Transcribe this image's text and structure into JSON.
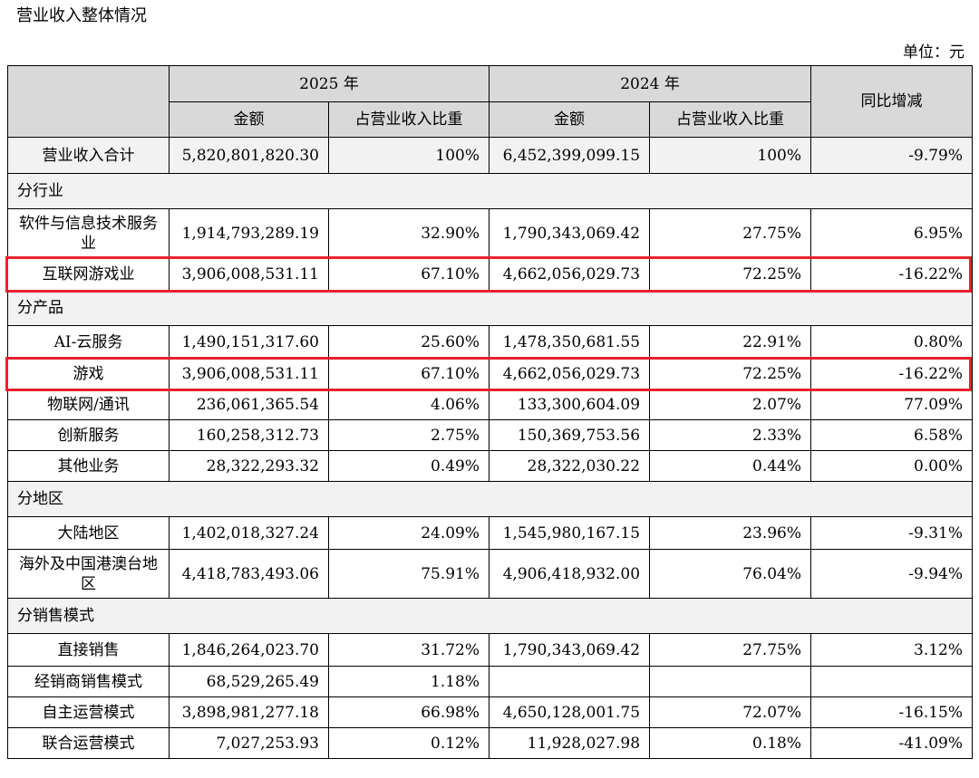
{
  "title": "营业收入整体情况",
  "unit": "单位：元",
  "header": {
    "year_2025": "2025 年",
    "year_2024": "2024 年",
    "yoy": "同比增减",
    "amount": "金额",
    "share": "占营业收入比重"
  },
  "total": {
    "label": "营业收入合计",
    "amt2025": "5,820,801,820.30",
    "pct2025": "100%",
    "amt2024": "6,452,399,099.15",
    "pct2024": "100%",
    "yoy": "-9.79%"
  },
  "sections": [
    {
      "title": "分行业",
      "rows": [
        {
          "label": "软件与信息技术服务业",
          "amt2025": "1,914,793,289.19",
          "pct2025": "32.90%",
          "amt2024": "1,790,343,069.42",
          "pct2024": "27.75%",
          "yoy": "6.95%"
        },
        {
          "label": "互联网游戏业",
          "amt2025": "3,906,008,531.11",
          "pct2025": "67.10%",
          "amt2024": "4,662,056,029.73",
          "pct2024": "72.25%",
          "yoy": "-16.22%"
        }
      ]
    },
    {
      "title": "分产品",
      "rows": [
        {
          "label": "AI-云服务",
          "amt2025": "1,490,151,317.60",
          "pct2025": "25.60%",
          "amt2024": "1,478,350,681.55",
          "pct2024": "22.91%",
          "yoy": "0.80%"
        },
        {
          "label": "游戏",
          "amt2025": "3,906,008,531.11",
          "pct2025": "67.10%",
          "amt2024": "4,662,056,029.73",
          "pct2024": "72.25%",
          "yoy": "-16.22%"
        },
        {
          "label": "物联网/通讯",
          "amt2025": "236,061,365.54",
          "pct2025": "4.06%",
          "amt2024": "133,300,604.09",
          "pct2024": "2.07%",
          "yoy": "77.09%"
        },
        {
          "label": "创新服务",
          "amt2025": "160,258,312.73",
          "pct2025": "2.75%",
          "amt2024": "150,369,753.56",
          "pct2024": "2.33%",
          "yoy": "6.58%"
        },
        {
          "label": "其他业务",
          "amt2025": "28,322,293.32",
          "pct2025": "0.49%",
          "amt2024": "28,322,030.22",
          "pct2024": "0.44%",
          "yoy": "0.00%"
        }
      ]
    },
    {
      "title": "分地区",
      "rows": [
        {
          "label": "大陆地区",
          "amt2025": "1,402,018,327.24",
          "pct2025": "24.09%",
          "amt2024": "1,545,980,167.15",
          "pct2024": "23.96%",
          "yoy": "-9.31%"
        },
        {
          "label": "海外及中国港澳台地区",
          "amt2025": "4,418,783,493.06",
          "pct2025": "75.91%",
          "amt2024": "4,906,418,932.00",
          "pct2024": "76.04%",
          "yoy": "-9.94%"
        }
      ]
    },
    {
      "title": "分销售模式",
      "rows": [
        {
          "label": "直接销售",
          "amt2025": "1,846,264,023.70",
          "pct2025": "31.72%",
          "amt2024": "1,790,343,069.42",
          "pct2024": "27.75%",
          "yoy": "3.12%"
        },
        {
          "label": "经销商销售模式",
          "amt2025": "68,529,265.49",
          "pct2025": "1.18%",
          "amt2024": "",
          "pct2024": "",
          "yoy": ""
        },
        {
          "label": "自主运营模式",
          "amt2025": "3,898,981,277.18",
          "pct2025": "66.98%",
          "amt2024": "4,650,128,001.75",
          "pct2024": "72.07%",
          "yoy": "-16.15%"
        },
        {
          "label": "联合运营模式",
          "amt2025": "7,027,253.93",
          "pct2025": "0.12%",
          "amt2024": "11,928,027.98",
          "pct2024": "0.18%",
          "yoy": "-41.09%"
        }
      ]
    }
  ],
  "colors": {
    "header_bg": "#d9d9d9",
    "row_bg": "#f2f2f2",
    "highlight": "#e8212c"
  }
}
